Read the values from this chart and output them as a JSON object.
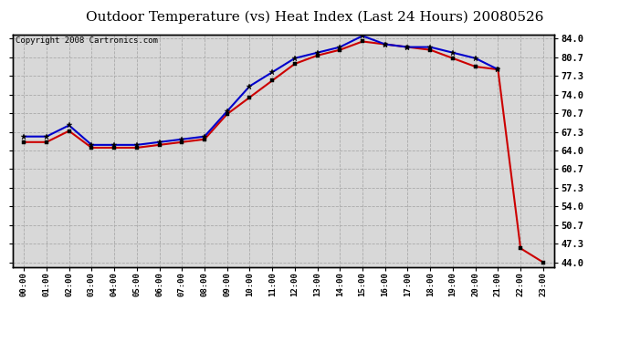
{
  "title": "Outdoor Temperature (vs) Heat Index (Last 24 Hours) 20080526",
  "copyright": "Copyright 2008 Cartronics.com",
  "x_labels": [
    "00:00",
    "01:00",
    "02:00",
    "03:00",
    "04:00",
    "05:00",
    "06:00",
    "07:00",
    "08:00",
    "09:00",
    "10:00",
    "11:00",
    "12:00",
    "13:00",
    "14:00",
    "15:00",
    "16:00",
    "17:00",
    "18:00",
    "19:00",
    "20:00",
    "21:00",
    "22:00",
    "23:00"
  ],
  "blue_x": [
    0,
    1,
    2,
    3,
    4,
    5,
    6,
    7,
    8,
    9,
    10,
    11,
    12,
    13,
    14,
    15,
    16,
    17,
    18,
    19,
    20,
    21
  ],
  "blue_y": [
    66.5,
    66.5,
    68.5,
    65.0,
    65.0,
    65.0,
    65.5,
    66.0,
    66.5,
    71.0,
    75.5,
    78.0,
    80.5,
    81.5,
    82.5,
    84.5,
    83.0,
    82.5,
    82.5,
    81.5,
    80.5,
    78.5
  ],
  "red_x": [
    0,
    1,
    2,
    3,
    4,
    5,
    6,
    7,
    8,
    9,
    10,
    11,
    12,
    13,
    14,
    15,
    16,
    17,
    18,
    19,
    20,
    21,
    22,
    23
  ],
  "red_y": [
    65.5,
    65.5,
    67.5,
    64.5,
    64.5,
    64.5,
    65.0,
    65.5,
    66.0,
    70.5,
    73.5,
    76.5,
    79.5,
    81.0,
    82.0,
    83.5,
    83.0,
    82.5,
    82.0,
    80.5,
    79.0,
    78.5,
    46.5,
    44.0
  ],
  "ylim_min": 44.0,
  "ylim_max": 84.0,
  "yticks": [
    44.0,
    47.3,
    50.7,
    54.0,
    57.3,
    60.7,
    64.0,
    67.3,
    70.7,
    74.0,
    77.3,
    80.7,
    84.0
  ],
  "blue_color": "#0000cc",
  "red_color": "#cc0000",
  "bg_color": "#ffffff",
  "plot_bg_color": "#d8d8d8",
  "grid_color": "#aaaaaa",
  "title_fontsize": 11,
  "copyright_fontsize": 6.5
}
